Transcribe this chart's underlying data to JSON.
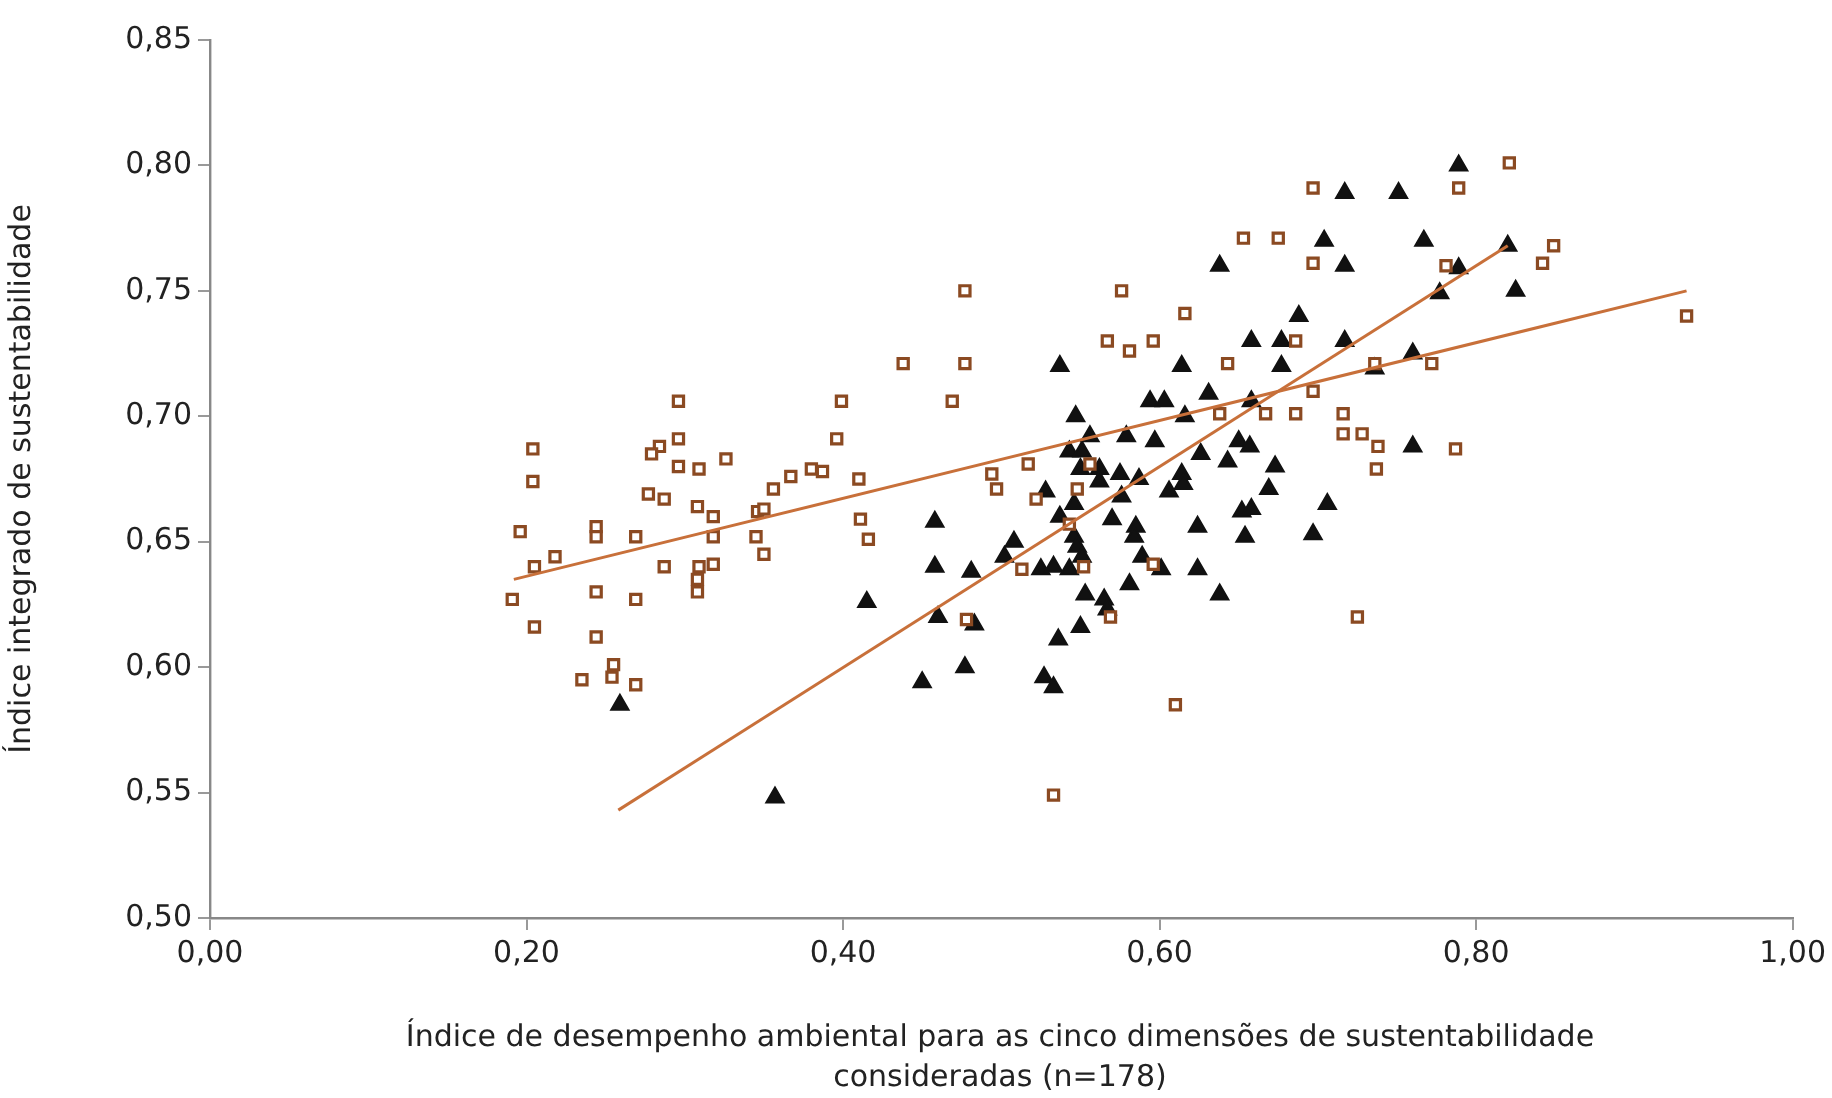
{
  "chart_data": {
    "type": "scatter",
    "xlabel": "Índice de desempenho ambiental para as cinco dimensões de sustentabilidade consideradas (n=178)",
    "ylabel": "Índice integrado de sustentabilidade",
    "xlim": [
      0,
      1
    ],
    "ylim": [
      0.5,
      0.85
    ],
    "xticks": [
      {
        "value": 0,
        "label": "0,00"
      },
      {
        "value": 0.2,
        "label": "0,20"
      },
      {
        "value": 0.4,
        "label": "0,40"
      },
      {
        "value": 0.6,
        "label": "0,60"
      },
      {
        "value": 0.8,
        "label": "0,80"
      },
      {
        "value": 1,
        "label": "1,00"
      }
    ],
    "yticks": [
      {
        "value": 0.5,
        "label": "0,50"
      },
      {
        "value": 0.55,
        "label": "0,55"
      },
      {
        "value": 0.6,
        "label": "0,60"
      },
      {
        "value": 0.65,
        "label": "0,65"
      },
      {
        "value": 0.7,
        "label": "0,70"
      },
      {
        "value": 0.75,
        "label": "0,75"
      },
      {
        "value": 0.8,
        "label": "0,80"
      },
      {
        "value": 0.85,
        "label": "0,85"
      }
    ],
    "grid": false,
    "legend": false,
    "series": [
      {
        "marker": "square",
        "color": "#8b4a22",
        "x": [
          0.296,
          0.399,
          0.204,
          0.284,
          0.279,
          0.296,
          0.296,
          0.309,
          0.326,
          0.396,
          0.204,
          0.277,
          0.287,
          0.308,
          0.318,
          0.318,
          0.346,
          0.35,
          0.356,
          0.367,
          0.38,
          0.387,
          0.41,
          0.196,
          0.244,
          0.244,
          0.269,
          0.218,
          0.205,
          0.345,
          0.35,
          0.411,
          0.416,
          0.287,
          0.309,
          0.318,
          0.308,
          0.308,
          0.191,
          0.244,
          0.269,
          0.205,
          0.244,
          0.255,
          0.235,
          0.254,
          0.269,
          0.616,
          0.567,
          0.581,
          0.596,
          0.438,
          0.477,
          0.643,
          0.469,
          0.638,
          0.667,
          0.517,
          0.494,
          0.497,
          0.556,
          0.522,
          0.548,
          0.543,
          0.513,
          0.552,
          0.596,
          0.478,
          0.569,
          0.61,
          0.533,
          0.821,
          0.697,
          0.789,
          0.653,
          0.675,
          0.697,
          0.781,
          0.576,
          0.686,
          0.736,
          0.772,
          0.697,
          0.686,
          0.716,
          0.716,
          0.728,
          0.738,
          0.787,
          0.737,
          0.725,
          0.849,
          0.842,
          0.933,
          0.477
        ],
        "values": [
          0.706,
          0.706,
          0.687,
          0.688,
          0.685,
          0.691,
          0.68,
          0.679,
          0.683,
          0.691,
          0.674,
          0.669,
          0.667,
          0.664,
          0.66,
          0.652,
          0.662,
          0.663,
          0.671,
          0.676,
          0.679,
          0.678,
          0.675,
          0.654,
          0.656,
          0.652,
          0.652,
          0.644,
          0.64,
          0.652,
          0.645,
          0.659,
          0.651,
          0.64,
          0.64,
          0.641,
          0.635,
          0.63,
          0.627,
          0.63,
          0.627,
          0.616,
          0.612,
          0.601,
          0.595,
          0.596,
          0.593,
          0.741,
          0.73,
          0.726,
          0.73,
          0.721,
          0.721,
          0.721,
          0.706,
          0.701,
          0.701,
          0.681,
          0.677,
          0.671,
          0.681,
          0.667,
          0.671,
          0.657,
          0.639,
          0.64,
          0.641,
          0.619,
          0.62,
          0.585,
          0.549,
          0.801,
          0.791,
          0.791,
          0.771,
          0.771,
          0.761,
          0.76,
          0.75,
          0.73,
          0.721,
          0.721,
          0.71,
          0.701,
          0.701,
          0.693,
          0.693,
          0.688,
          0.687,
          0.679,
          0.62,
          0.768,
          0.761,
          0.74,
          0.75
        ]
      },
      {
        "marker": "triangle",
        "color": "#111111",
        "x": [
          0.415,
          0.259,
          0.357,
          0.658,
          0.537,
          0.614,
          0.594,
          0.603,
          0.631,
          0.547,
          0.616,
          0.556,
          0.579,
          0.597,
          0.658,
          0.65,
          0.657,
          0.543,
          0.551,
          0.626,
          0.643,
          0.55,
          0.562,
          0.575,
          0.562,
          0.587,
          0.614,
          0.615,
          0.606,
          0.576,
          0.528,
          0.546,
          0.669,
          0.537,
          0.57,
          0.585,
          0.584,
          0.546,
          0.548,
          0.508,
          0.502,
          0.624,
          0.652,
          0.658,
          0.654,
          0.458,
          0.458,
          0.481,
          0.525,
          0.533,
          0.543,
          0.551,
          0.589,
          0.601,
          0.624,
          0.553,
          0.565,
          0.581,
          0.638,
          0.567,
          0.46,
          0.483,
          0.55,
          0.536,
          0.45,
          0.477,
          0.527,
          0.533,
          0.789,
          0.717,
          0.751,
          0.704,
          0.767,
          0.638,
          0.717,
          0.789,
          0.82,
          0.777,
          0.688,
          0.677,
          0.717,
          0.677,
          0.76,
          0.736,
          0.76,
          0.673,
          0.706,
          0.697,
          0.825
        ],
        "values": [
          0.626,
          0.585,
          0.548,
          0.73,
          0.72,
          0.72,
          0.706,
          0.706,
          0.709,
          0.7,
          0.7,
          0.692,
          0.692,
          0.69,
          0.706,
          0.69,
          0.688,
          0.686,
          0.686,
          0.685,
          0.682,
          0.679,
          0.679,
          0.677,
          0.674,
          0.675,
          0.677,
          0.673,
          0.67,
          0.668,
          0.67,
          0.665,
          0.671,
          0.66,
          0.659,
          0.656,
          0.652,
          0.652,
          0.648,
          0.65,
          0.644,
          0.656,
          0.662,
          0.663,
          0.652,
          0.658,
          0.64,
          0.638,
          0.639,
          0.64,
          0.639,
          0.644,
          0.644,
          0.639,
          0.639,
          0.629,
          0.627,
          0.633,
          0.629,
          0.623,
          0.62,
          0.617,
          0.616,
          0.611,
          0.594,
          0.6,
          0.596,
          0.592,
          0.8,
          0.789,
          0.789,
          0.77,
          0.77,
          0.76,
          0.76,
          0.759,
          0.768,
          0.749,
          0.74,
          0.73,
          0.73,
          0.72,
          0.725,
          0.719,
          0.688,
          0.68,
          0.665,
          0.653,
          0.75
        ]
      },
      {
        "type": "line",
        "marker": "none",
        "line_style": "solid",
        "color": "#c8703a",
        "x": [
          0.192,
          0.933
        ],
        "values": [
          0.635,
          0.75
        ]
      },
      {
        "type": "line",
        "marker": "none",
        "line_style": "solid",
        "color": "#c8703a",
        "x": [
          0.258,
          0.82
        ],
        "values": [
          0.543,
          0.768
        ]
      }
    ]
  }
}
